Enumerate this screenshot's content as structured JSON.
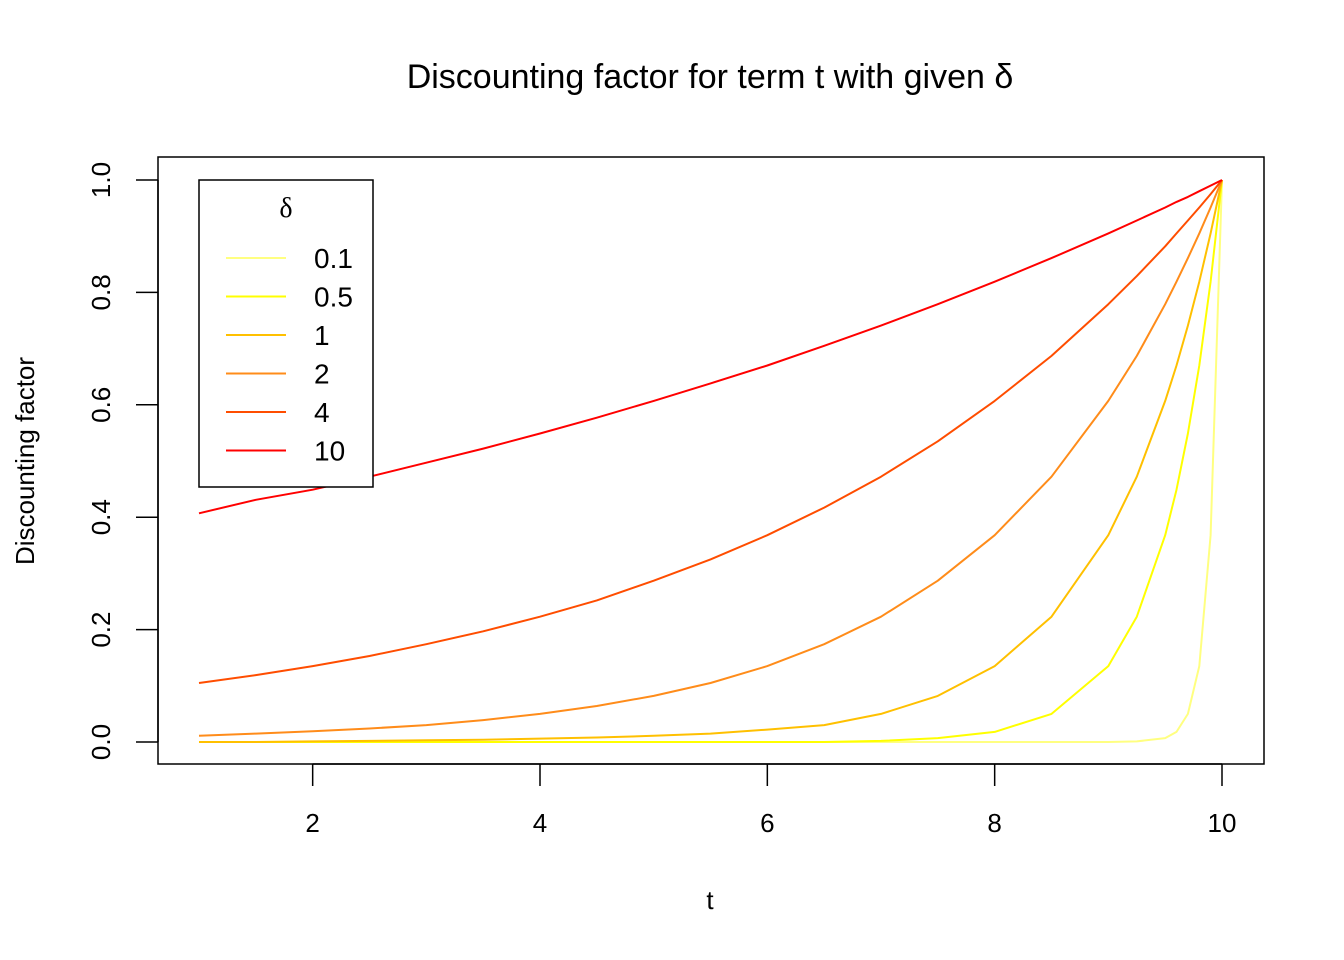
{
  "chart_data": {
    "type": "line",
    "title": "Discounting factor for term t with given δ",
    "xlabel": "t",
    "ylabel": "Discounting factor",
    "xlim": [
      1,
      10
    ],
    "ylim": [
      0,
      1
    ],
    "x_ticks": [
      "2",
      "4",
      "6",
      "8",
      "10"
    ],
    "y_ticks": [
      "0.0",
      "0.2",
      "0.4",
      "0.6",
      "0.8",
      "1.0"
    ],
    "grid": false,
    "legend": {
      "title": "δ",
      "position": "top-left"
    },
    "x": [
      1,
      1.5,
      2,
      2.5,
      3,
      3.5,
      4,
      4.5,
      5,
      5.5,
      6,
      6.5,
      7,
      7.5,
      8,
      8.5,
      9,
      9.25,
      9.5,
      9.6,
      9.7,
      9.8,
      9.9,
      10
    ],
    "series": [
      {
        "name": "0.1",
        "color": "#FFFF80",
        "values": [
          0,
          0,
          0,
          0,
          0,
          0,
          0,
          0,
          0,
          0,
          0,
          0,
          0,
          0,
          0,
          0,
          0,
          0.001,
          0.007,
          0.018,
          0.05,
          0.135,
          0.368,
          1
        ]
      },
      {
        "name": "0.5",
        "color": "#FFFF00",
        "values": [
          0,
          0,
          0,
          0,
          0,
          0,
          0,
          0,
          0,
          0,
          0,
          0,
          0.002,
          0.007,
          0.018,
          0.05,
          0.135,
          0.223,
          0.368,
          0.449,
          0.549,
          0.67,
          0.819,
          1
        ]
      },
      {
        "name": "1",
        "color": "#FFC000",
        "values": [
          0,
          0,
          0.001,
          0.002,
          0.003,
          0.004,
          0.006,
          0.008,
          0.011,
          0.015,
          0.022,
          0.03,
          0.05,
          0.082,
          0.135,
          0.223,
          0.368,
          0.472,
          0.607,
          0.67,
          0.741,
          0.819,
          0.905,
          1
        ]
      },
      {
        "name": "2",
        "color": "#FF8C1A",
        "values": [
          0.011,
          0.015,
          0.019,
          0.024,
          0.03,
          0.039,
          0.05,
          0.064,
          0.082,
          0.105,
          0.135,
          0.174,
          0.223,
          0.287,
          0.368,
          0.472,
          0.607,
          0.687,
          0.779,
          0.819,
          0.861,
          0.905,
          0.951,
          1
        ]
      },
      {
        "name": "4",
        "color": "#FF4D00",
        "values": [
          0.105,
          0.119,
          0.135,
          0.153,
          0.174,
          0.197,
          0.223,
          0.252,
          0.287,
          0.325,
          0.368,
          0.417,
          0.472,
          0.535,
          0.607,
          0.687,
          0.779,
          0.829,
          0.882,
          0.905,
          0.928,
          0.951,
          0.975,
          1
        ]
      },
      {
        "name": "10",
        "color": "#FF0000",
        "values": [
          0.407,
          0.431,
          0.449,
          0.472,
          0.497,
          0.522,
          0.549,
          0.577,
          0.607,
          0.638,
          0.67,
          0.705,
          0.741,
          0.779,
          0.819,
          0.861,
          0.905,
          0.928,
          0.951,
          0.961,
          0.97,
          0.98,
          0.99,
          1
        ]
      }
    ]
  }
}
